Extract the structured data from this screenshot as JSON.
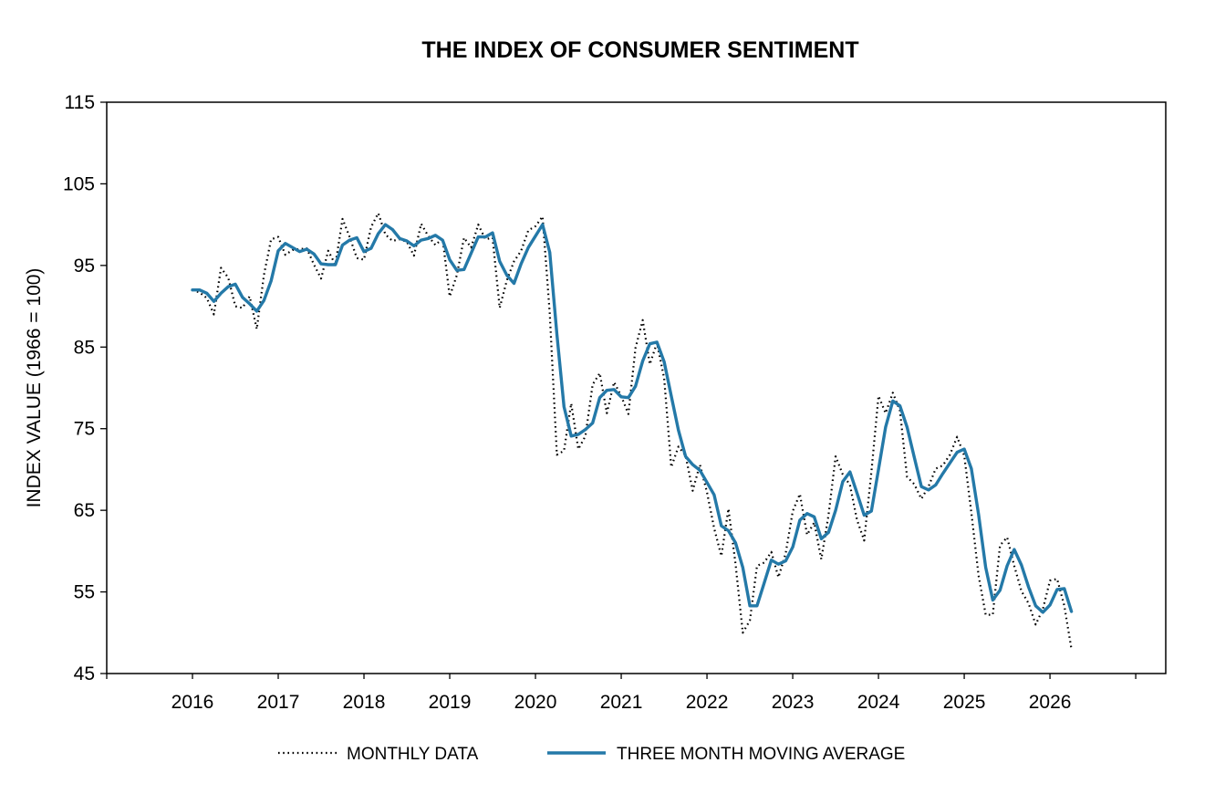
{
  "chart_data": {
    "type": "line",
    "title": "THE INDEX OF CONSUMER SENTIMENT",
    "xlabel": "",
    "ylabel": "INDEX VALUE (1966 = 100)",
    "ylim": [
      45,
      115
    ],
    "yticks": [
      45,
      55,
      65,
      75,
      85,
      95,
      105,
      115
    ],
    "xlim": [
      2015,
      2027.35
    ],
    "xticks": [
      2016,
      2017,
      2018,
      2019,
      2020,
      2021,
      2022,
      2023,
      2024,
      2025,
      2026
    ],
    "xtick_labels": [
      "2016",
      "2017",
      "2018",
      "2019",
      "2020",
      "2021",
      "2022",
      "2023",
      "2024",
      "2025",
      "2026"
    ],
    "grid": false,
    "legend_position": "bottom",
    "series": [
      {
        "name": "MONTHLY DATA",
        "style": "dotted",
        "color": "#000000",
        "x": [
          2016.0,
          2016.083,
          2016.167,
          2016.25,
          2016.333,
          2016.417,
          2016.5,
          2016.583,
          2016.667,
          2016.75,
          2016.833,
          2016.917,
          2017.0,
          2017.083,
          2017.167,
          2017.25,
          2017.333,
          2017.417,
          2017.5,
          2017.583,
          2017.667,
          2017.75,
          2017.833,
          2017.917,
          2018.0,
          2018.083,
          2018.167,
          2018.25,
          2018.333,
          2018.417,
          2018.5,
          2018.583,
          2018.667,
          2018.75,
          2018.833,
          2018.917,
          2019.0,
          2019.083,
          2019.167,
          2019.25,
          2019.333,
          2019.417,
          2019.5,
          2019.583,
          2019.667,
          2019.75,
          2019.833,
          2019.917,
          2020.0,
          2020.083,
          2020.167,
          2020.25,
          2020.333,
          2020.417,
          2020.5,
          2020.583,
          2020.667,
          2020.75,
          2020.833,
          2020.917,
          2021.0,
          2021.083,
          2021.167,
          2021.25,
          2021.333,
          2021.417,
          2021.5,
          2021.583,
          2021.667,
          2021.75,
          2021.833,
          2021.917,
          2022.0,
          2022.083,
          2022.167,
          2022.25,
          2022.333,
          2022.417,
          2022.5,
          2022.583,
          2022.667,
          2022.75,
          2022.833,
          2022.917,
          2023.0,
          2023.083,
          2023.167,
          2023.25,
          2023.333,
          2023.417,
          2023.5,
          2023.583,
          2023.667,
          2023.75,
          2023.833,
          2023.917,
          2024.0,
          2024.083,
          2024.167,
          2024.25,
          2024.333,
          2024.417,
          2024.5,
          2024.583,
          2024.667,
          2024.75,
          2024.833,
          2024.917,
          2025.0,
          2025.083,
          2025.167,
          2025.25,
          2025.333,
          2025.417,
          2025.5,
          2025.583,
          2025.667,
          2025.75,
          2025.833,
          2025.917,
          2026.0,
          2026.083,
          2026.167,
          2026.25
        ],
        "values": [
          92.0,
          91.7,
          91.0,
          89.0,
          94.7,
          93.5,
          90.0,
          89.8,
          91.2,
          87.2,
          93.8,
          98.2,
          98.5,
          96.3,
          96.9,
          97.0,
          97.1,
          95.1,
          93.4,
          96.8,
          95.1,
          100.7,
          98.5,
          95.9,
          95.7,
          99.7,
          101.4,
          98.8,
          98.0,
          98.2,
          97.9,
          96.2,
          100.1,
          98.6,
          97.5,
          98.3,
          91.2,
          93.8,
          98.4,
          97.2,
          100.0,
          98.2,
          98.4,
          89.8,
          93.2,
          95.5,
          96.8,
          99.3,
          99.8,
          101.0,
          89.1,
          71.8,
          72.3,
          78.1,
          72.5,
          74.1,
          80.4,
          81.8,
          76.9,
          80.7,
          79.0,
          76.8,
          84.9,
          88.3,
          82.9,
          85.5,
          81.2,
          70.3,
          72.8,
          71.7,
          67.4,
          70.6,
          67.2,
          62.8,
          59.4,
          65.2,
          58.4,
          50.0,
          51.5,
          58.2,
          58.6,
          59.9,
          56.8,
          59.7,
          64.9,
          67.0,
          62.0,
          63.5,
          59.0,
          64.4,
          71.6,
          69.4,
          68.1,
          63.8,
          61.3,
          69.7,
          79.0,
          76.9,
          79.4,
          77.2,
          69.1,
          68.2,
          66.4,
          67.9,
          70.1,
          70.5,
          71.8,
          74.0,
          71.7,
          64.7,
          57.0,
          52.2,
          52.2,
          60.7,
          61.7,
          58.2,
          55.1,
          53.6,
          51.0,
          52.9,
          56.4,
          56.6,
          53.3,
          48.0
        ]
      },
      {
        "name": "THREE MONTH MOVING AVERAGE",
        "style": "solid",
        "color": "#2479a8",
        "x": [
          2016.0,
          2016.083,
          2016.167,
          2016.25,
          2016.333,
          2016.417,
          2016.5,
          2016.583,
          2016.667,
          2016.75,
          2016.833,
          2016.917,
          2017.0,
          2017.083,
          2017.167,
          2017.25,
          2017.333,
          2017.417,
          2017.5,
          2017.583,
          2017.667,
          2017.75,
          2017.833,
          2017.917,
          2018.0,
          2018.083,
          2018.167,
          2018.25,
          2018.333,
          2018.417,
          2018.5,
          2018.583,
          2018.667,
          2018.75,
          2018.833,
          2018.917,
          2019.0,
          2019.083,
          2019.167,
          2019.25,
          2019.333,
          2019.417,
          2019.5,
          2019.583,
          2019.667,
          2019.75,
          2019.833,
          2019.917,
          2020.0,
          2020.083,
          2020.167,
          2020.25,
          2020.333,
          2020.417,
          2020.5,
          2020.583,
          2020.667,
          2020.75,
          2020.833,
          2020.917,
          2021.0,
          2021.083,
          2021.167,
          2021.25,
          2021.333,
          2021.417,
          2021.5,
          2021.583,
          2021.667,
          2021.75,
          2021.833,
          2021.917,
          2022.0,
          2022.083,
          2022.167,
          2022.25,
          2022.333,
          2022.417,
          2022.5,
          2022.583,
          2022.667,
          2022.75,
          2022.833,
          2022.917,
          2023.0,
          2023.083,
          2023.167,
          2023.25,
          2023.333,
          2023.417,
          2023.5,
          2023.583,
          2023.667,
          2023.75,
          2023.833,
          2023.917,
          2024.0,
          2024.083,
          2024.167,
          2024.25,
          2024.333,
          2024.417,
          2024.5,
          2024.583,
          2024.667,
          2024.75,
          2024.833,
          2024.917,
          2025.0,
          2025.083,
          2025.167,
          2025.25,
          2025.333,
          2025.417,
          2025.5,
          2025.583,
          2025.667,
          2025.75,
          2025.833,
          2025.917,
          2026.0,
          2026.083,
          2026.167,
          2026.25
        ],
        "values": [
          92.0,
          92.0,
          91.6,
          90.6,
          91.6,
          92.4,
          92.7,
          91.1,
          90.3,
          89.4,
          90.7,
          93.1,
          96.8,
          97.7,
          97.2,
          96.7,
          97.0,
          96.4,
          95.2,
          95.1,
          95.1,
          97.5,
          98.1,
          98.4,
          96.7,
          97.1,
          98.9,
          100.0,
          99.4,
          98.3,
          98.0,
          97.4,
          98.1,
          98.3,
          98.7,
          98.1,
          95.7,
          94.4,
          94.5,
          96.5,
          98.5,
          98.5,
          99.0,
          95.5,
          93.8,
          92.8,
          95.2,
          97.2,
          98.6,
          100.0,
          96.6,
          86.6,
          77.7,
          74.1,
          74.3,
          74.9,
          75.7,
          78.8,
          79.7,
          79.8,
          78.9,
          78.8,
          80.2,
          83.3,
          85.4,
          85.6,
          83.2,
          79.0,
          74.8,
          71.6,
          70.6,
          69.9,
          68.4,
          66.9,
          63.1,
          62.5,
          61.0,
          58.0,
          53.3,
          53.3,
          56.1,
          58.9,
          58.4,
          58.8,
          60.5,
          63.8,
          64.6,
          64.2,
          61.5,
          62.3,
          65.0,
          68.5,
          69.7,
          67.1,
          64.4,
          64.9,
          70.0,
          75.2,
          78.4,
          77.8,
          75.2,
          71.5,
          67.9,
          67.5,
          68.1,
          69.5,
          70.8,
          72.1,
          72.5,
          70.1,
          64.5,
          58.0,
          54.0,
          55.2,
          58.2,
          60.2,
          58.3,
          55.6,
          53.3,
          52.5,
          53.4,
          55.3,
          55.4,
          52.6
        ]
      }
    ]
  }
}
